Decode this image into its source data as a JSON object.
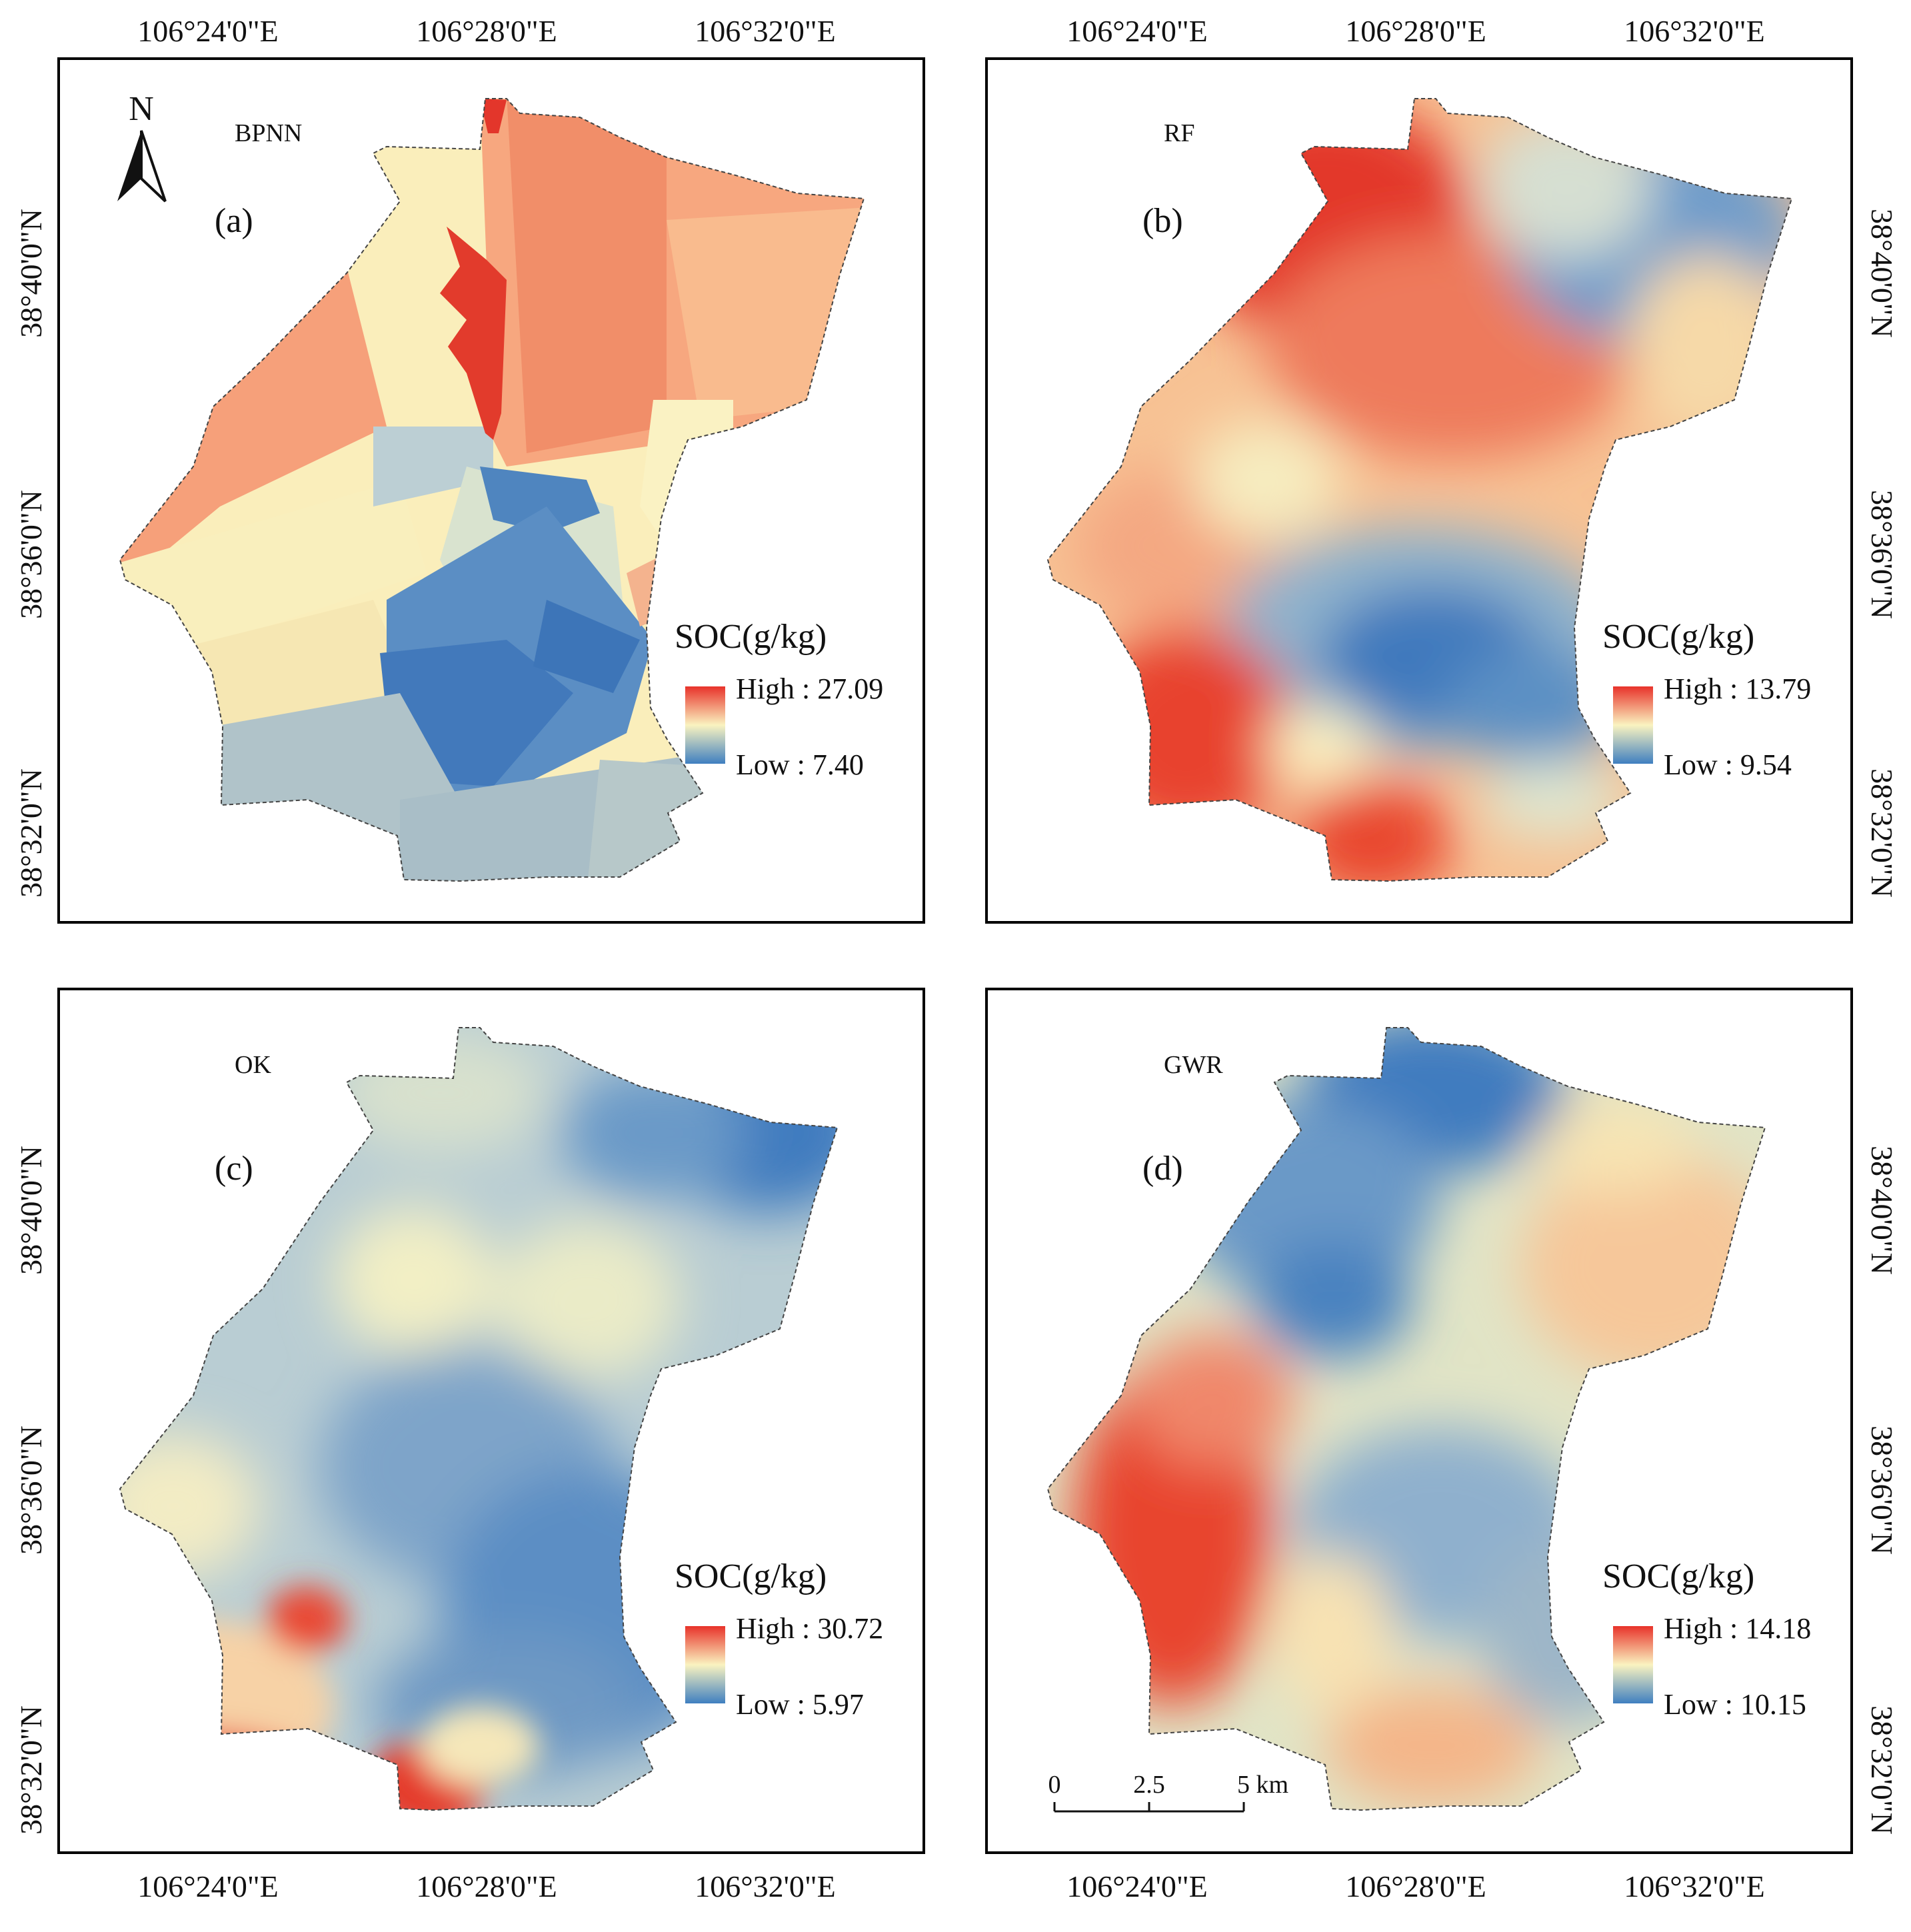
{
  "coordinates": {
    "longitudes": [
      "106°24'0\"E",
      "106°28'0\"E",
      "106°32'0\"E"
    ],
    "latitudes": [
      "38°40'0\"N",
      "38°36'0\"N",
      "38°32'0\"N"
    ]
  },
  "north_arrow": {
    "label": "N"
  },
  "scale_bar": {
    "labels": [
      "0",
      "2.5",
      "5 km"
    ]
  },
  "colors": {
    "high": "#e8322a",
    "mid": "#faf3c0",
    "low": "#3f7fc0"
  },
  "panels": [
    {
      "id": "a",
      "letter": "(a)",
      "model": "BPNN",
      "legend_title": "SOC(g/kg)",
      "high": "High : 27.09",
      "low": "Low : 7.40"
    },
    {
      "id": "b",
      "letter": "(b)",
      "model": "RF",
      "legend_title": "SOC(g/kg)",
      "high": "High : 13.79",
      "low": "Low : 9.54"
    },
    {
      "id": "c",
      "letter": "(c)",
      "model": "OK",
      "legend_title": "SOC(g/kg)",
      "high": "High : 30.72",
      "low": "Low : 5.97"
    },
    {
      "id": "d",
      "letter": "(d)",
      "model": "GWR",
      "legend_title": "SOC(g/kg)",
      "high": "High : 14.18",
      "low": "Low : 10.15"
    }
  ]
}
